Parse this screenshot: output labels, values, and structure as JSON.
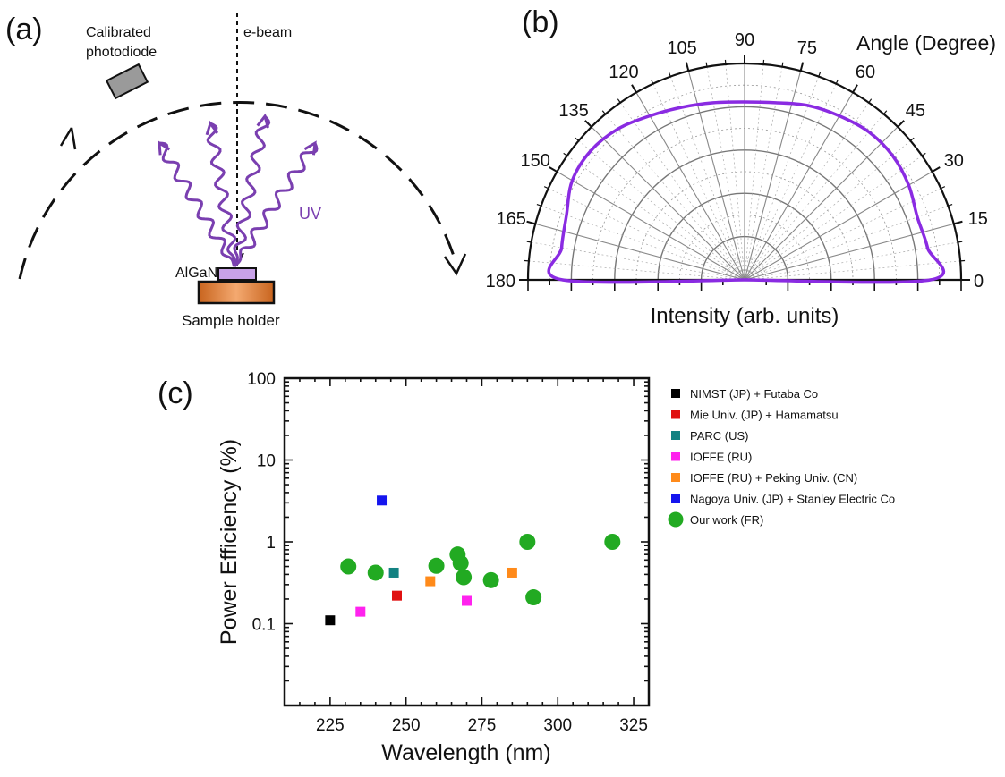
{
  "panel_a": {
    "label": "(a)",
    "photodiode_label": [
      "Calibrated",
      "photodiode"
    ],
    "ebeam_label": "e-beam",
    "uv_label": "UV",
    "sample_label": "AlGaN",
    "holder_label": "Sample holder"
  },
  "panel_b": {
    "label": "(b)",
    "angle_title": "Angle (Degree)",
    "intensity_label": "Intensity (arb. units)"
  },
  "panel_c": {
    "label": "(c)"
  },
  "colors": {
    "uv_purple": "#7a3fb0",
    "polar_line": "#8a2be2",
    "green": "#22aa22"
  },
  "chart_data": [
    {
      "type": "line",
      "coordinate": "polar",
      "title": "",
      "angle_title": "Angle (Degree)",
      "radial_label": "Intensity (arb. units)",
      "angle_range": [
        0,
        180
      ],
      "angle_ticks": [
        0,
        15,
        30,
        45,
        60,
        75,
        90,
        105,
        120,
        135,
        150,
        165,
        180
      ],
      "grid": true,
      "series": [
        {
          "angles": [
            0,
            10,
            20,
            30,
            40,
            50,
            60,
            70,
            80,
            90,
            100,
            110,
            120,
            130,
            140,
            150,
            160,
            170,
            180
          ],
          "values": [
            0.98,
            0.98,
            0.97,
            1.0,
            1.02,
            1.02,
            1.0,
            0.98,
            0.95,
            0.94,
            0.95,
            0.97,
            1.0,
            1.04,
            1.06,
            1.05,
            1.0,
            0.98,
            0.96
          ],
          "color": "#8a2be2"
        }
      ]
    },
    {
      "type": "scatter",
      "title": "",
      "xlabel": "Wavelength (nm)",
      "ylabel": "Power Efficiency (%)",
      "xlim": [
        210,
        330
      ],
      "ylim": [
        0.01,
        100
      ],
      "yscale": "log",
      "xticks": [
        225,
        250,
        275,
        300,
        325
      ],
      "yticks": [
        0.1,
        1,
        10,
        100
      ],
      "ytick_labels": [
        "0.1",
        "1",
        "10",
        "100"
      ],
      "legend": "right",
      "series": [
        {
          "name": "NIMST (JP) + Futaba Co",
          "color": "#000000",
          "marker": "square",
          "points": [
            [
              225,
              0.11
            ]
          ]
        },
        {
          "name": "Mie Univ. (JP) + Hamamatsu",
          "color": "#e01010",
          "marker": "square",
          "points": [
            [
              247,
              0.22
            ]
          ]
        },
        {
          "name": "PARC (US)",
          "color": "#138282",
          "marker": "square",
          "points": [
            [
              246,
              0.42
            ]
          ]
        },
        {
          "name": "IOFFE (RU)",
          "color": "#ff22ee",
          "marker": "square",
          "points": [
            [
              235,
              0.14
            ],
            [
              270,
              0.19
            ]
          ]
        },
        {
          "name": "IOFFE (RU) + Peking Univ. (CN)",
          "color": "#ff8a1a",
          "marker": "square",
          "points": [
            [
              258,
              0.33
            ],
            [
              285,
              0.42
            ]
          ]
        },
        {
          "name": "Nagoya Univ. (JP) + Stanley Electric Co",
          "color": "#1515ee",
          "marker": "square",
          "points": [
            [
              242,
              3.2
            ]
          ]
        },
        {
          "name": "Our work (FR)",
          "color": "#22aa22",
          "marker": "circle",
          "points": [
            [
              231,
              0.5
            ],
            [
              240,
              0.42
            ],
            [
              260,
              0.51
            ],
            [
              267,
              0.7
            ],
            [
              268,
              0.55
            ],
            [
              269,
              0.37
            ],
            [
              278,
              0.34
            ],
            [
              290,
              1.0
            ],
            [
              292,
              0.21
            ],
            [
              318,
              1.0
            ]
          ]
        }
      ]
    }
  ]
}
